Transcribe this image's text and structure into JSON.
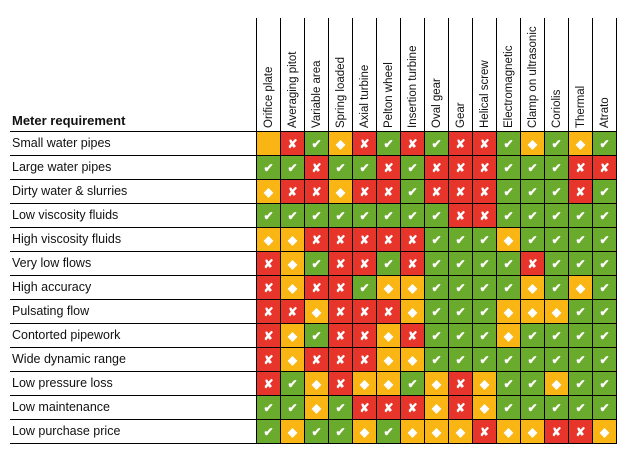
{
  "title": "Meter requirement",
  "colors": {
    "good": "#6aab2e",
    "bad": "#e8352b",
    "mid": "#f9b513"
  },
  "symbols": {
    "good": "✔",
    "bad": "✘",
    "mid": "◆",
    "empty": ""
  },
  "columns": [
    "Orifice plate",
    "Averaging pitot",
    "Variable area",
    "Spring loaded",
    "Axial turbine",
    "Pelton wheel",
    "Insertion turbine",
    "Oval gear",
    "Gear",
    "Helical screw",
    "Electromagnetic",
    "Clamp on ultrasonic",
    "Coriolis",
    "Thermal",
    "Atrato"
  ],
  "rows": [
    {
      "label": "Small water pipes",
      "cells": [
        "e",
        "x",
        "c",
        "d",
        "x",
        "c",
        "x",
        "c",
        "x",
        "x",
        "c",
        "d",
        "c",
        "d",
        "c"
      ]
    },
    {
      "label": "Large water pipes",
      "cells": [
        "c",
        "c",
        "x",
        "c",
        "c",
        "x",
        "c",
        "x",
        "x",
        "x",
        "c",
        "c",
        "c",
        "x",
        "x"
      ]
    },
    {
      "label": "Dirty water & slurries",
      "cells": [
        "d",
        "x",
        "x",
        "d",
        "x",
        "x",
        "c",
        "x",
        "x",
        "x",
        "c",
        "c",
        "c",
        "x",
        "c"
      ]
    },
    {
      "label": "Low viscosity fluids",
      "cells": [
        "c",
        "c",
        "c",
        "c",
        "c",
        "c",
        "c",
        "c",
        "x",
        "x",
        "c",
        "c",
        "c",
        "c",
        "c"
      ]
    },
    {
      "label": "High viscosity fluids",
      "cells": [
        "d",
        "d",
        "x",
        "x",
        "x",
        "x",
        "x",
        "c",
        "c",
        "c",
        "d",
        "c",
        "c",
        "c",
        "c"
      ]
    },
    {
      "label": "Very low flows",
      "cells": [
        "x",
        "d",
        "c",
        "x",
        "x",
        "c",
        "x",
        "c",
        "c",
        "c",
        "c",
        "x",
        "c",
        "c",
        "c"
      ]
    },
    {
      "label": "High accuracy",
      "cells": [
        "x",
        "d",
        "x",
        "x",
        "c",
        "d",
        "d",
        "c",
        "c",
        "c",
        "c",
        "d",
        "c",
        "d",
        "c"
      ]
    },
    {
      "label": "Pulsating flow",
      "cells": [
        "x",
        "x",
        "d",
        "x",
        "x",
        "x",
        "d",
        "c",
        "c",
        "c",
        "d",
        "d",
        "d",
        "c",
        "c"
      ]
    },
    {
      "label": "Contorted pipework",
      "cells": [
        "x",
        "d",
        "c",
        "x",
        "x",
        "d",
        "x",
        "c",
        "c",
        "c",
        "d",
        "c",
        "c",
        "c",
        "c"
      ]
    },
    {
      "label": "Wide dynamic range",
      "cells": [
        "x",
        "d",
        "x",
        "x",
        "x",
        "d",
        "d",
        "c",
        "c",
        "c",
        "c",
        "c",
        "c",
        "c",
        "c"
      ]
    },
    {
      "label": "Low pressure loss",
      "cells": [
        "x",
        "c",
        "d",
        "x",
        "d",
        "d",
        "c",
        "d",
        "x",
        "d",
        "c",
        "c",
        "d",
        "c",
        "c"
      ]
    },
    {
      "label": "Low maintenance",
      "cells": [
        "c",
        "c",
        "d",
        "c",
        "x",
        "x",
        "x",
        "d",
        "x",
        "d",
        "c",
        "c",
        "c",
        "c",
        "c"
      ]
    },
    {
      "label": "Low purchase price",
      "cells": [
        "c",
        "d",
        "c",
        "c",
        "d",
        "c",
        "d",
        "d",
        "d",
        "x",
        "d",
        "d",
        "x",
        "x",
        "d"
      ]
    }
  ]
}
